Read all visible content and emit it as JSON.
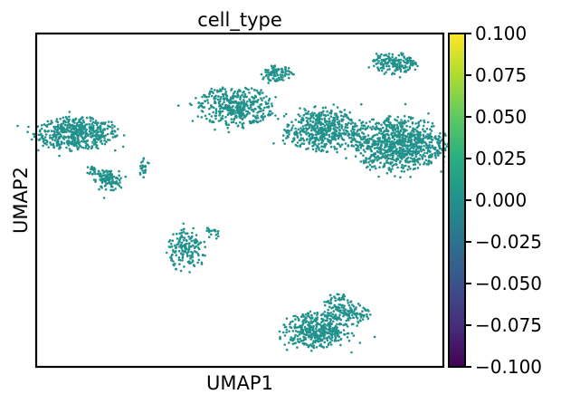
{
  "chart_data": {
    "type": "scatter",
    "title": "cell_type",
    "xlabel": "UMAP1",
    "ylabel": "UMAP2",
    "point_color": "#21918c",
    "xlim": [
      0,
      100
    ],
    "ylim": [
      0,
      100
    ],
    "x_ticks": false,
    "y_ticks": false,
    "grid": false,
    "colorbar": {
      "colormap": "viridis",
      "range": [
        -0.1,
        0.1
      ],
      "tick_labels": [
        "0.100",
        "0.075",
        "0.050",
        "0.025",
        "0.000",
        "−0.025",
        "−0.050",
        "−0.075",
        "−0.100"
      ]
    },
    "clusters": [
      {
        "cx": 10,
        "cy": 70,
        "rx": 9.5,
        "ry": 4.5,
        "count": 520
      },
      {
        "cx": 17.5,
        "cy": 56,
        "rx": 3.2,
        "ry": 3.0,
        "count": 110
      },
      {
        "cx": 14,
        "cy": 59,
        "rx": 1.5,
        "ry": 1.5,
        "count": 20
      },
      {
        "cx": 26.5,
        "cy": 60,
        "rx": 1.4,
        "ry": 2.5,
        "count": 25
      },
      {
        "cx": 49,
        "cy": 78,
        "rx": 8.5,
        "ry": 5.5,
        "count": 420
      },
      {
        "cx": 59,
        "cy": 88,
        "rx": 3.5,
        "ry": 2.2,
        "count": 90
      },
      {
        "cx": 70,
        "cy": 71,
        "rx": 8.0,
        "ry": 6.0,
        "count": 500
      },
      {
        "cx": 89,
        "cy": 67,
        "rx": 10.5,
        "ry": 7.5,
        "count": 900
      },
      {
        "cx": 88,
        "cy": 91,
        "rx": 5.0,
        "ry": 3.0,
        "count": 170
      },
      {
        "cx": 37,
        "cy": 35,
        "rx": 4.5,
        "ry": 5.5,
        "count": 170
      },
      {
        "cx": 43.5,
        "cy": 40.5,
        "rx": 1.8,
        "ry": 2.0,
        "count": 20
      },
      {
        "cx": 69,
        "cy": 11,
        "rx": 7.5,
        "ry": 5.0,
        "count": 440
      },
      {
        "cx": 77,
        "cy": 16,
        "rx": 4.5,
        "ry": 3.0,
        "count": 110
      },
      {
        "cx": 73.5,
        "cy": 20,
        "rx": 3.0,
        "ry": 2.0,
        "count": 40
      }
    ]
  }
}
